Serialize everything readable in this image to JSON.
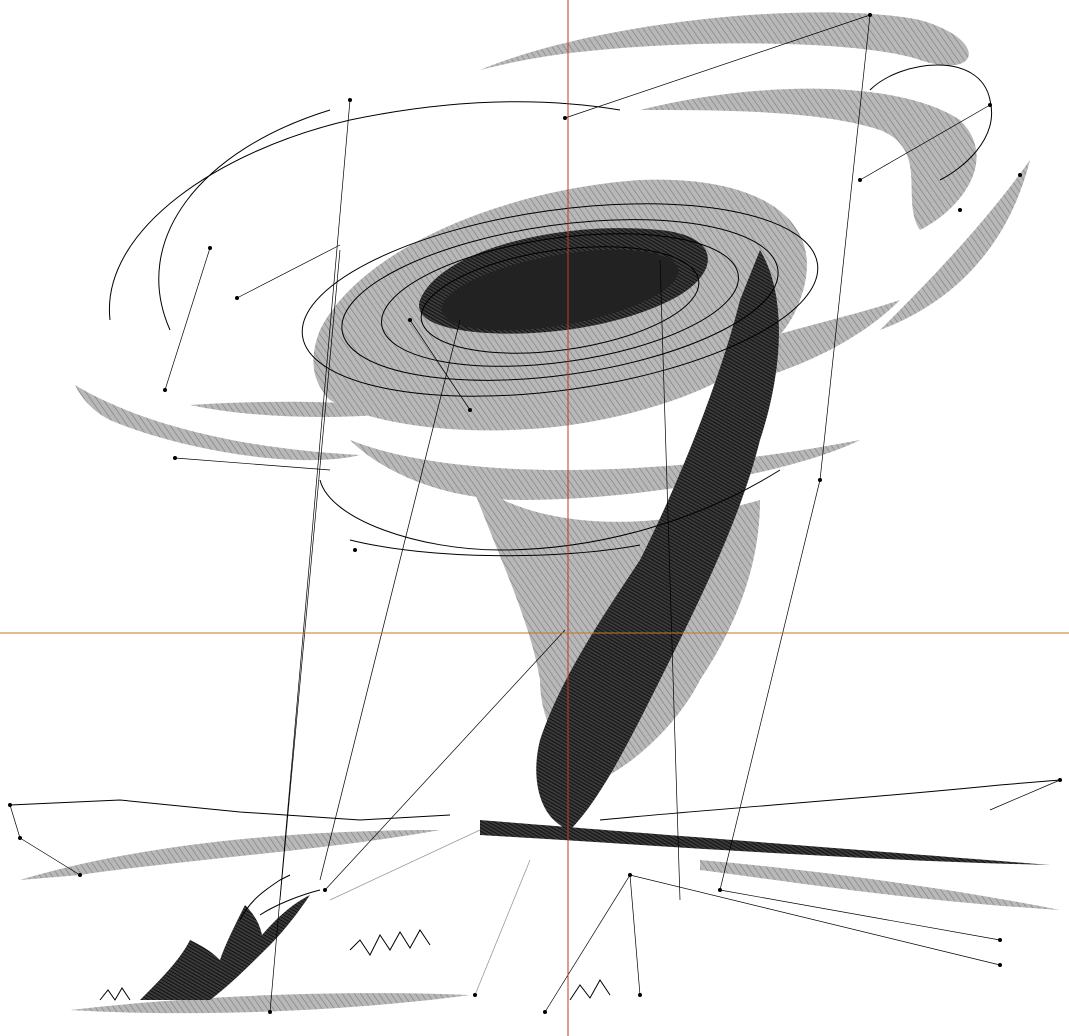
{
  "canvas": {
    "background": "#ffffff"
  },
  "guides": {
    "vertical_color": "#c0392b",
    "horizontal_color": "#c0772b"
  },
  "colors": {
    "fill_stitch": "#a8a8a8",
    "dark_stitch": "#2a2a2a",
    "outline": "#000000",
    "travel": "#000000",
    "travel_light": "#9a9a9a"
  }
}
